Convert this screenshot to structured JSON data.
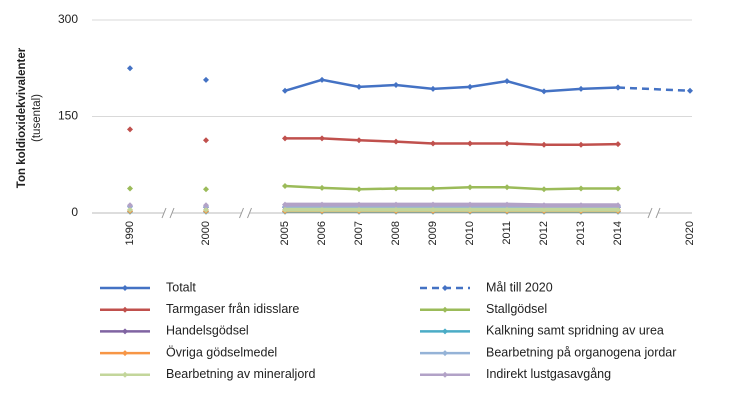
{
  "chart_data": {
    "type": "line",
    "ylabel": "Ton koldioxidekvivalenter",
    "ylabel_unit": "(tusental)",
    "categories": [
      "1990",
      "2000",
      "2005",
      "2006",
      "2007",
      "2008",
      "2009",
      "2010",
      "2011",
      "2012",
      "2013",
      "2014",
      "2020"
    ],
    "axis_breaks_after": [
      0,
      1,
      11
    ],
    "ylim": [
      0,
      300
    ],
    "yticks": [
      0,
      150,
      300
    ],
    "grid": true,
    "series": [
      {
        "name": "Totalt",
        "color": "#4472c4",
        "values": [
          225,
          207,
          190,
          207,
          196,
          199,
          193,
          196,
          205,
          189,
          193,
          195,
          null
        ]
      },
      {
        "name": "Mål till 2020",
        "color": "#4472c4",
        "dashed": true,
        "values": [
          null,
          null,
          null,
          null,
          null,
          null,
          null,
          null,
          null,
          null,
          null,
          195,
          190
        ]
      },
      {
        "name": "Tarmgaser från idisslare",
        "color": "#c0504d",
        "values": [
          130,
          113,
          116,
          116,
          113,
          111,
          108,
          108,
          108,
          106,
          106,
          107,
          null
        ]
      },
      {
        "name": "Stallgödsel",
        "color": "#9bbb59",
        "values": [
          38,
          37,
          42,
          39,
          37,
          38,
          38,
          40,
          40,
          37,
          38,
          38,
          null
        ]
      },
      {
        "name": "Handelsgödsel",
        "color": "#8064a2",
        "values": [
          10,
          9,
          9,
          9,
          9,
          9,
          9,
          9,
          9,
          9,
          9,
          9,
          null
        ]
      },
      {
        "name": "Kalkning samt spridning av urea",
        "color": "#4bacc6",
        "values": [
          2,
          2,
          2,
          2,
          2,
          2,
          2,
          2,
          2,
          2,
          2,
          2,
          null
        ]
      },
      {
        "name": "Övriga gödselmedel",
        "color": "#f79646",
        "values": [
          3,
          3,
          3,
          3,
          3,
          3,
          3,
          3,
          3,
          3,
          3,
          3,
          null
        ]
      },
      {
        "name": "Bearbetning på organogena jordar",
        "color": "#95b3d7",
        "values": [
          10,
          10,
          10,
          10,
          10,
          10,
          10,
          10,
          10,
          10,
          10,
          10,
          null
        ]
      },
      {
        "name": "Bearbetning av mineraljord",
        "color": "#c3d69b",
        "values": [
          5,
          5,
          5,
          5,
          5,
          5,
          5,
          5,
          5,
          5,
          5,
          5,
          null
        ]
      },
      {
        "name": "Indirekt lustgasavgång",
        "color": "#b2a2c7",
        "values": [
          12,
          12,
          13,
          13,
          13,
          13,
          13,
          13,
          13,
          12,
          12,
          12,
          null
        ]
      }
    ]
  }
}
